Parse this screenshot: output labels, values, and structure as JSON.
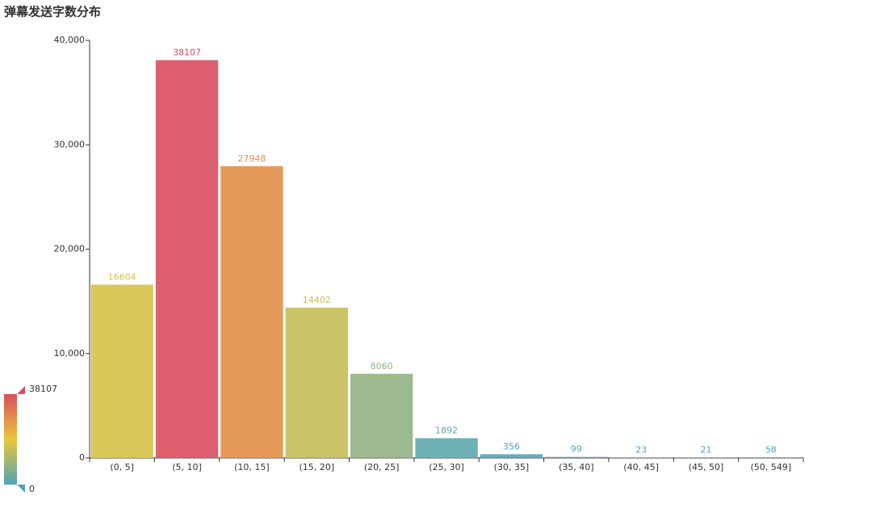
{
  "chart_data": {
    "type": "bar",
    "title": "弹幕发送字数分布",
    "categories": [
      "(0, 5]",
      "(5, 10]",
      "(10, 15]",
      "(15, 20]",
      "(20, 25]",
      "(25, 30]",
      "(30, 35]",
      "(35, 40]",
      "(40, 45]",
      "(45, 50]",
      "(50, 549]"
    ],
    "values": [
      16604,
      38107,
      27948,
      14402,
      8060,
      1892,
      356,
      99,
      23,
      21,
      58
    ],
    "ylim": [
      0,
      40000
    ],
    "yticks": [
      0,
      {
        "value": 10000,
        "label": "10,000"
      },
      {
        "value": 20000,
        "label": "20,000"
      },
      {
        "value": 30000,
        "label": "30,000"
      },
      {
        "value": 40000,
        "label": "40,000"
      }
    ],
    "grid": false,
    "visual_map": {
      "min": 0,
      "max": 38107,
      "colors": [
        "#50a3ba",
        "#eac736",
        "#d94e5d"
      ]
    }
  }
}
